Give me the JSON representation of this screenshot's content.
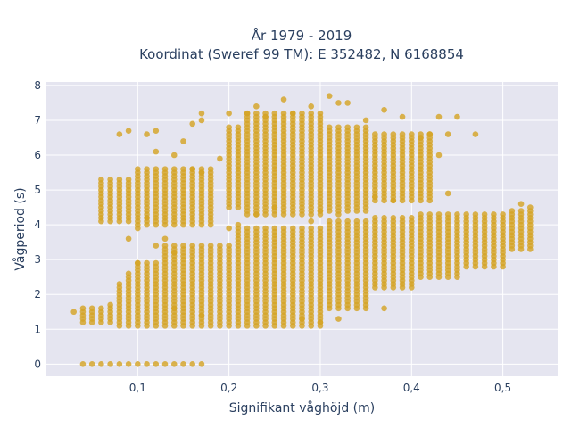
{
  "chart_data": {
    "type": "scatter",
    "title_line1": "År 1979 - 2019",
    "title_line2": "Koordinat (Sweref 99 TM): E 352482, N 6168854",
    "xlabel": "Signifikant våghöjd (m)",
    "ylabel": "Vågperiod (s)",
    "xlim": [
      0.0,
      0.56
    ],
    "ylim": [
      -0.35,
      8.1
    ],
    "x_ticks": [
      0.1,
      0.2,
      0.3,
      0.4,
      0.5
    ],
    "x_tick_labels": [
      "0,1",
      "0,2",
      "0,3",
      "0,4",
      "0,5"
    ],
    "y_ticks": [
      0,
      1,
      2,
      3,
      4,
      5,
      6,
      7,
      8
    ],
    "y_tick_labels": [
      "0",
      "1",
      "2",
      "3",
      "4",
      "5",
      "6",
      "7",
      "8"
    ],
    "grid": true,
    "legend": "none",
    "colors": {
      "marker": "#d4a326",
      "plot_bg": "#e5e5f0",
      "grid": "#ffffff",
      "text": "#2a3f5f"
    },
    "series": [
      {
        "description_free": true,
        "bands": [
          {
            "x_min": 0.03,
            "x_max": 0.03,
            "y_min": 1.5,
            "y_max": 1.5
          },
          {
            "x_min": 0.04,
            "x_max": 0.06,
            "y_min": 1.2,
            "y_max": 1.6
          },
          {
            "x_min": 0.07,
            "x_max": 0.07,
            "y_min": 1.15,
            "y_max": 1.7
          },
          {
            "x_min": 0.08,
            "x_max": 0.08,
            "y_min": 1.1,
            "y_max": 2.3
          },
          {
            "x_min": 0.09,
            "x_max": 0.09,
            "y_min": 1.1,
            "y_max": 2.6
          },
          {
            "x_min": 0.1,
            "x_max": 0.12,
            "y_min": 1.1,
            "y_max": 2.9
          },
          {
            "x_min": 0.13,
            "x_max": 0.2,
            "y_min": 1.1,
            "y_max": 3.4
          },
          {
            "x_min": 0.21,
            "x_max": 0.3,
            "y_min": 1.1,
            "y_max": 3.9
          },
          {
            "x_min": 0.31,
            "x_max": 0.35,
            "y_min": 1.6,
            "y_max": 4.1
          },
          {
            "x_min": 0.36,
            "x_max": 0.4,
            "y_min": 2.2,
            "y_max": 4.2
          },
          {
            "x_min": 0.41,
            "x_max": 0.45,
            "y_min": 2.5,
            "y_max": 4.3
          },
          {
            "x_min": 0.46,
            "x_max": 0.5,
            "y_min": 2.8,
            "y_max": 4.3
          },
          {
            "x_min": 0.51,
            "x_max": 0.53,
            "y_min": 3.3,
            "y_max": 4.4
          },
          {
            "x_min": 0.06,
            "x_max": 0.09,
            "y_min": 4.1,
            "y_max": 5.3
          },
          {
            "x_min": 0.1,
            "x_max": 0.18,
            "y_min": 4.0,
            "y_max": 5.6
          },
          {
            "x_min": 0.2,
            "x_max": 0.21,
            "y_min": 4.5,
            "y_max": 6.8
          },
          {
            "x_min": 0.22,
            "x_max": 0.3,
            "y_min": 4.3,
            "y_max": 7.2
          },
          {
            "x_min": 0.31,
            "x_max": 0.35,
            "y_min": 4.4,
            "y_max": 6.8
          },
          {
            "x_min": 0.36,
            "x_max": 0.42,
            "y_min": 4.7,
            "y_max": 6.6
          },
          {
            "x_min": 0.04,
            "x_max": 0.17,
            "y_min": 0.0,
            "y_max": 0.0
          }
        ],
        "points": [
          [
            0.08,
            6.6
          ],
          [
            0.09,
            6.7
          ],
          [
            0.11,
            6.6
          ],
          [
            0.12,
            6.7
          ],
          [
            0.12,
            6.1
          ],
          [
            0.14,
            6.0
          ],
          [
            0.15,
            6.4
          ],
          [
            0.16,
            6.9
          ],
          [
            0.17,
            7.0
          ],
          [
            0.17,
            7.2
          ],
          [
            0.19,
            5.9
          ],
          [
            0.2,
            7.2
          ],
          [
            0.22,
            7.2
          ],
          [
            0.23,
            7.4
          ],
          [
            0.24,
            7.1
          ],
          [
            0.26,
            7.6
          ],
          [
            0.27,
            7.2
          ],
          [
            0.29,
            7.4
          ],
          [
            0.31,
            7.7
          ],
          [
            0.32,
            7.5
          ],
          [
            0.33,
            7.5
          ],
          [
            0.35,
            7.0
          ],
          [
            0.37,
            7.3
          ],
          [
            0.39,
            7.1
          ],
          [
            0.41,
            6.5
          ],
          [
            0.43,
            7.1
          ],
          [
            0.44,
            6.6
          ],
          [
            0.45,
            7.1
          ],
          [
            0.47,
            6.6
          ],
          [
            0.43,
            6.0
          ],
          [
            0.42,
            6.6
          ],
          [
            0.44,
            4.9
          ],
          [
            0.38,
            4.7
          ],
          [
            0.36,
            4.8
          ],
          [
            0.09,
            3.6
          ],
          [
            0.1,
            3.9
          ],
          [
            0.11,
            4.2
          ],
          [
            0.12,
            3.4
          ],
          [
            0.13,
            3.6
          ],
          [
            0.14,
            3.2
          ],
          [
            0.2,
            3.9
          ],
          [
            0.21,
            4.0
          ],
          [
            0.23,
            4.3
          ],
          [
            0.25,
            4.5
          ],
          [
            0.29,
            4.1
          ],
          [
            0.3,
            4.4
          ],
          [
            0.32,
            4.3
          ],
          [
            0.1,
            2.9
          ],
          [
            0.14,
            1.6
          ],
          [
            0.17,
            1.4
          ],
          [
            0.28,
            1.3
          ],
          [
            0.3,
            1.2
          ],
          [
            0.32,
            1.3
          ],
          [
            0.37,
            1.6
          ],
          [
            0.52,
            4.6
          ],
          [
            0.53,
            4.5
          ],
          [
            0.16,
            5.6
          ],
          [
            0.17,
            5.5
          ]
        ]
      }
    ]
  }
}
